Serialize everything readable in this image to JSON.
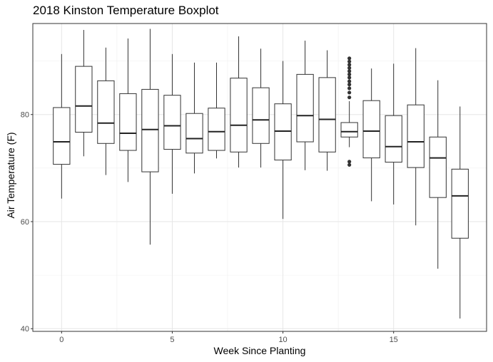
{
  "chart_data": {
    "type": "boxplot",
    "title": "2018 Kinston Temperature Boxplot",
    "xlabel": "Week Since Planting",
    "ylabel": "Air Temperature (F)",
    "x_ticks": [
      0,
      5,
      10,
      15
    ],
    "y_ticks": [
      40,
      60,
      80
    ],
    "xlim": [
      -1.3,
      19.2
    ],
    "ylim": [
      39.5,
      97
    ],
    "grid": true,
    "boxes": [
      {
        "week": 0,
        "min": 64.3,
        "q1": 70.7,
        "median": 74.9,
        "q3": 81.3,
        "max": 91.3,
        "outliers": []
      },
      {
        "week": 1,
        "min": 72.2,
        "q1": 76.7,
        "median": 81.6,
        "q3": 89.0,
        "max": 95.8,
        "outliers": []
      },
      {
        "week": 2,
        "min": 68.7,
        "q1": 74.6,
        "median": 78.4,
        "q3": 86.3,
        "max": 92.5,
        "outliers": []
      },
      {
        "week": 3,
        "min": 67.4,
        "q1": 73.3,
        "median": 76.5,
        "q3": 83.9,
        "max": 94.2,
        "outliers": []
      },
      {
        "week": 4,
        "min": 55.7,
        "q1": 69.3,
        "median": 77.2,
        "q3": 84.7,
        "max": 96.0,
        "outliers": []
      },
      {
        "week": 5,
        "min": 65.2,
        "q1": 73.5,
        "median": 77.9,
        "q3": 83.6,
        "max": 91.3,
        "outliers": []
      },
      {
        "week": 6,
        "min": 69.0,
        "q1": 72.8,
        "median": 75.5,
        "q3": 80.2,
        "max": 89.7,
        "outliers": []
      },
      {
        "week": 7,
        "min": 71.8,
        "q1": 73.3,
        "median": 76.8,
        "q3": 81.2,
        "max": 89.7,
        "outliers": []
      },
      {
        "week": 8,
        "min": 70.1,
        "q1": 73.0,
        "median": 78.0,
        "q3": 86.8,
        "max": 94.6,
        "outliers": []
      },
      {
        "week": 9,
        "min": 70.1,
        "q1": 74.6,
        "median": 79.0,
        "q3": 85.0,
        "max": 92.3,
        "outliers": []
      },
      {
        "week": 10,
        "min": 60.5,
        "q1": 71.5,
        "median": 76.9,
        "q3": 82.0,
        "max": 90.0,
        "outliers": []
      },
      {
        "week": 11,
        "min": 69.6,
        "q1": 74.9,
        "median": 79.8,
        "q3": 87.5,
        "max": 93.8,
        "outliers": []
      },
      {
        "week": 12,
        "min": 69.5,
        "q1": 73.0,
        "median": 79.1,
        "q3": 86.9,
        "max": 92.0,
        "outliers": []
      },
      {
        "week": 13,
        "min": 73.9,
        "q1": 75.8,
        "median": 76.8,
        "q3": 78.5,
        "max": 82.5,
        "outliers": [
          70.6,
          71.2,
          83.2,
          84.1,
          84.9,
          85.6,
          86.2,
          86.9,
          87.5,
          88.1,
          88.7,
          89.3,
          89.9,
          90.5
        ]
      },
      {
        "week": 14,
        "min": 63.8,
        "q1": 71.9,
        "median": 76.9,
        "q3": 82.6,
        "max": 88.6,
        "outliers": []
      },
      {
        "week": 15,
        "min": 63.2,
        "q1": 71.1,
        "median": 74.0,
        "q3": 79.8,
        "max": 89.5,
        "outliers": []
      },
      {
        "week": 16,
        "min": 59.3,
        "q1": 70.1,
        "median": 74.9,
        "q3": 81.8,
        "max": 92.4,
        "outliers": []
      },
      {
        "week": 17,
        "min": 51.2,
        "q1": 64.5,
        "median": 71.9,
        "q3": 75.8,
        "max": 86.4,
        "outliers": []
      },
      {
        "week": 18,
        "min": 41.9,
        "q1": 56.9,
        "median": 64.8,
        "q3": 69.8,
        "max": 81.5,
        "outliers": []
      }
    ]
  }
}
